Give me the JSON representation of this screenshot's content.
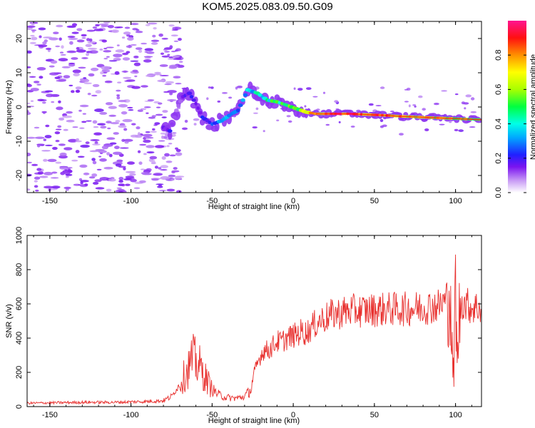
{
  "title": "KOM5.2025.083.09.50.G09",
  "chart_data": [
    {
      "type": "heatmap",
      "xlabel": "Height of straight line (km)",
      "ylabel": "Frequency (Hz)",
      "xlim": [
        -164,
        116
      ],
      "ylim": [
        -25,
        25
      ],
      "xticks": [
        -150,
        -100,
        -50,
        0,
        50,
        100
      ],
      "yticks": [
        -20,
        -10,
        0,
        10,
        20
      ],
      "grid": false,
      "colorbar": {
        "label": "Normalized spectral amplitude",
        "range": [
          0,
          1
        ],
        "ticks": [
          0.0,
          0.2,
          0.4,
          0.6,
          0.8
        ]
      },
      "ridge": [
        {
          "x": -80,
          "y": -6,
          "v": 0.15
        },
        {
          "x": -76,
          "y": -7,
          "v": 0.2
        },
        {
          "x": -72,
          "y": -1,
          "v": 0.1
        },
        {
          "x": -68,
          "y": 3,
          "v": 0.15
        },
        {
          "x": -64,
          "y": 4,
          "v": 0.2
        },
        {
          "x": -60,
          "y": 1,
          "v": 0.15
        },
        {
          "x": -56,
          "y": -3,
          "v": 0.2
        },
        {
          "x": -50,
          "y": -5,
          "v": 0.25
        },
        {
          "x": -44,
          "y": -4,
          "v": 0.3
        },
        {
          "x": -38,
          "y": -2,
          "v": 0.35
        },
        {
          "x": -34,
          "y": -1,
          "v": 0.3
        },
        {
          "x": -28,
          "y": 5,
          "v": 0.35
        },
        {
          "x": -22,
          "y": 4,
          "v": 0.4
        },
        {
          "x": -16,
          "y": 2,
          "v": 0.45
        },
        {
          "x": -10,
          "y": 1.5,
          "v": 0.5
        },
        {
          "x": -4,
          "y": 0.5,
          "v": 0.55
        },
        {
          "x": 2,
          "y": -0.5,
          "v": 0.6
        },
        {
          "x": 8,
          "y": -1.5,
          "v": 0.65
        },
        {
          "x": 14,
          "y": -2,
          "v": 0.8
        },
        {
          "x": 25,
          "y": -2,
          "v": 0.88
        },
        {
          "x": 35,
          "y": -2,
          "v": 0.88
        },
        {
          "x": 45,
          "y": -2.2,
          "v": 0.85
        },
        {
          "x": 55,
          "y": -2.4,
          "v": 0.82
        },
        {
          "x": 65,
          "y": -2.7,
          "v": 0.78
        },
        {
          "x": 75,
          "y": -2.9,
          "v": 0.74
        },
        {
          "x": 85,
          "y": -3.1,
          "v": 0.7
        },
        {
          "x": 95,
          "y": -3.3,
          "v": 0.65
        },
        {
          "x": 105,
          "y": -3.5,
          "v": 0.6
        },
        {
          "x": 116,
          "y": -3.7,
          "v": 0.55
        }
      ]
    },
    {
      "type": "line",
      "xlabel": "Height of straight line (km)",
      "ylabel": "SNR (v/v)",
      "xlim": [
        -164,
        116
      ],
      "ylim": [
        0,
        1000
      ],
      "xticks": [
        -150,
        -100,
        -50,
        0,
        50,
        100
      ],
      "yticks": [
        0,
        200,
        400,
        600,
        800,
        1000
      ],
      "grid": false,
      "series": [
        {
          "color": "#e8302e",
          "x": [
            -164,
            -150,
            -130,
            -110,
            -90,
            -80,
            -75,
            -72,
            -70,
            -66,
            -62,
            -58,
            -54,
            -50,
            -46,
            -42,
            -38,
            -34,
            -30,
            -26,
            -24,
            -22,
            -20,
            -18,
            -15,
            -12,
            -10,
            -7,
            -4,
            -1,
            2,
            5,
            8,
            12,
            16,
            20,
            25,
            30,
            35,
            40,
            50,
            60,
            70,
            80,
            90,
            94,
            96,
            98,
            99,
            100,
            101,
            102,
            104,
            106,
            110,
            116
          ],
          "y": [
            20,
            22,
            25,
            25,
            30,
            35,
            60,
            100,
            130,
            200,
            280,
            240,
            170,
            100,
            70,
            55,
            50,
            50,
            60,
            100,
            200,
            250,
            300,
            330,
            330,
            360,
            380,
            380,
            400,
            410,
            420,
            440,
            430,
            470,
            500,
            520,
            540,
            550,
            560,
            560,
            565,
            570,
            570,
            580,
            590,
            620,
            700,
            300,
            150,
            800,
            200,
            500,
            620,
            600,
            580,
            580
          ]
        }
      ]
    }
  ]
}
